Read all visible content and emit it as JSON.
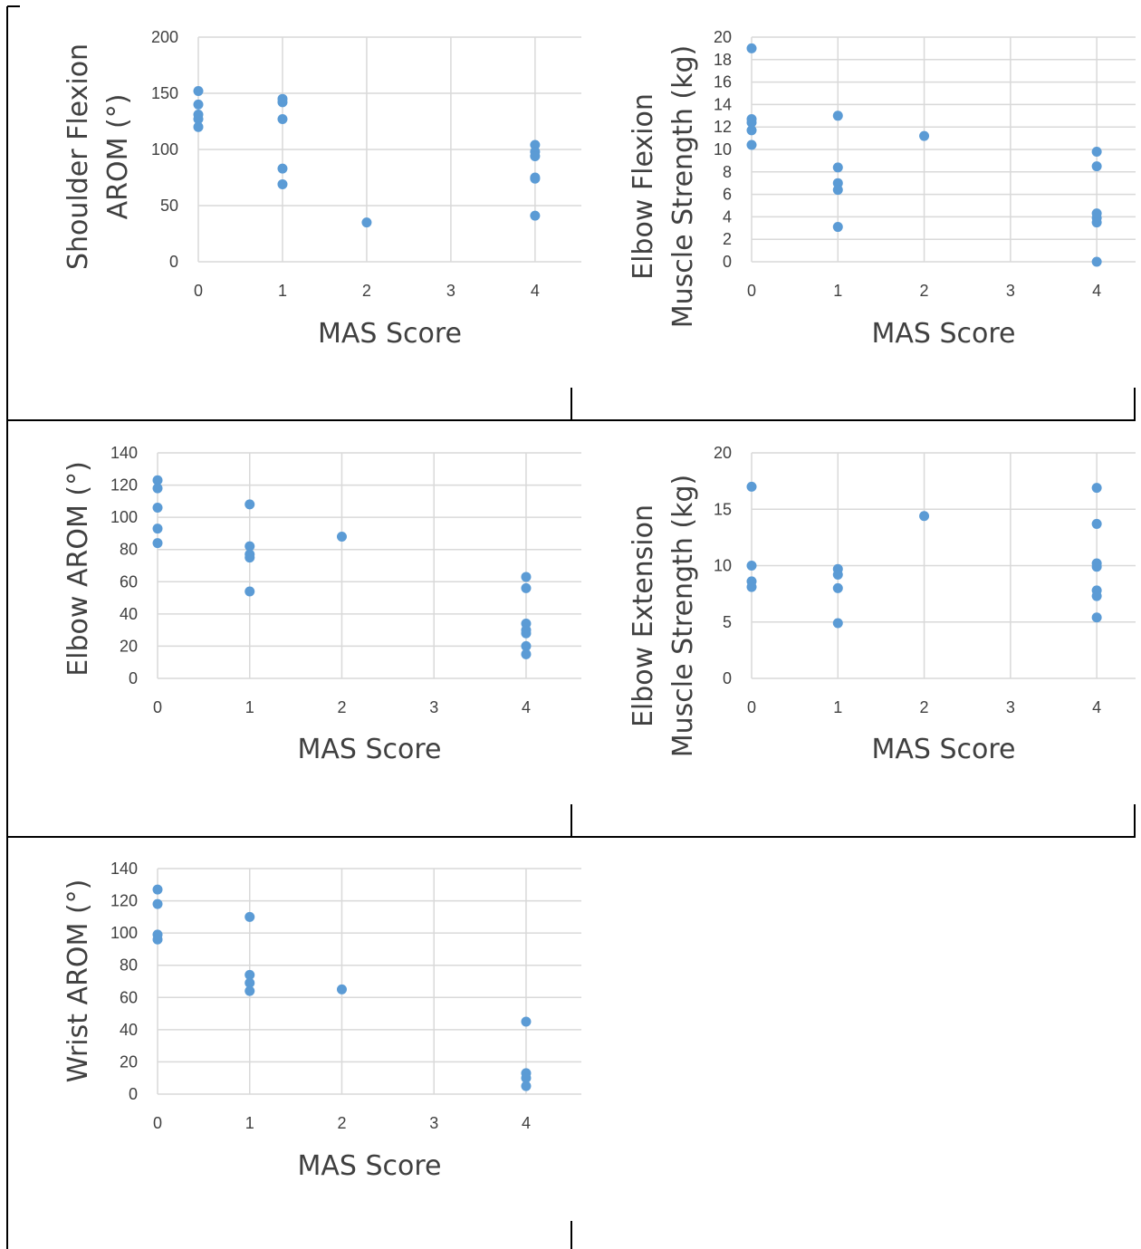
{
  "colors": {
    "marker": "#5b9bd5",
    "grid": "#d9d9d9",
    "text": "#404040",
    "border": "#000000"
  },
  "chart_data": [
    {
      "id": "c1",
      "type": "scatter",
      "xlabel": "MAS Score",
      "ylabel": [
        "Shoulder Flexion",
        "AROM (°)"
      ],
      "xlim": [
        0,
        4.55
      ],
      "ylim": [
        0,
        200
      ],
      "xticks": [
        0,
        1,
        2,
        3,
        4
      ],
      "yticks": [
        0,
        50,
        100,
        150,
        200
      ],
      "grid": "on",
      "points": [
        [
          0,
          152
        ],
        [
          0,
          140
        ],
        [
          0,
          131
        ],
        [
          0,
          127
        ],
        [
          0,
          120
        ],
        [
          1,
          145
        ],
        [
          1,
          142
        ],
        [
          1,
          127
        ],
        [
          1,
          83
        ],
        [
          1,
          69
        ],
        [
          2,
          35
        ],
        [
          4,
          104
        ],
        [
          4,
          98
        ],
        [
          4,
          94
        ],
        [
          4,
          75
        ],
        [
          4,
          74
        ],
        [
          4,
          41
        ]
      ]
    },
    {
      "id": "c2",
      "type": "scatter",
      "xlabel": "MAS Score",
      "ylabel": [
        "Elbow Flexion",
        "Muscle Strength  (kg)"
      ],
      "xlim": [
        0,
        4.45
      ],
      "ylim": [
        0,
        20
      ],
      "xticks": [
        0,
        1,
        2,
        3,
        4
      ],
      "yticks": [
        0,
        2,
        4,
        6,
        8,
        10,
        12,
        14,
        16,
        18,
        20
      ],
      "grid": "on",
      "points": [
        [
          0,
          19
        ],
        [
          0,
          12.7
        ],
        [
          0,
          12.4
        ],
        [
          0,
          11.7
        ],
        [
          0,
          10.4
        ],
        [
          1,
          13
        ],
        [
          1,
          8.4
        ],
        [
          1,
          7
        ],
        [
          1,
          6.4
        ],
        [
          1,
          3.1
        ],
        [
          2,
          11.2
        ],
        [
          4,
          9.8
        ],
        [
          4,
          8.5
        ],
        [
          4,
          4.3
        ],
        [
          4,
          3.9
        ],
        [
          4,
          3.5
        ],
        [
          4,
          0
        ]
      ]
    },
    {
      "id": "c3",
      "type": "scatter",
      "xlabel": "MAS Score",
      "ylabel": [
        "Elbow AROM (°)"
      ],
      "xlim": [
        0,
        4.6
      ],
      "ylim": [
        0,
        140
      ],
      "xticks": [
        0,
        1,
        2,
        3,
        4
      ],
      "yticks": [
        0,
        20,
        40,
        60,
        80,
        100,
        120,
        140
      ],
      "grid": "on",
      "points": [
        [
          0,
          123
        ],
        [
          0,
          118
        ],
        [
          0,
          106
        ],
        [
          0,
          93
        ],
        [
          0,
          84
        ],
        [
          1,
          108
        ],
        [
          1,
          82
        ],
        [
          1,
          77
        ],
        [
          1,
          75
        ],
        [
          1,
          54
        ],
        [
          2,
          88
        ],
        [
          4,
          63
        ],
        [
          4,
          56
        ],
        [
          4,
          34
        ],
        [
          4,
          30
        ],
        [
          4,
          28
        ],
        [
          4,
          20
        ],
        [
          4,
          15
        ]
      ]
    },
    {
      "id": "c4",
      "type": "scatter",
      "xlabel": "MAS Score",
      "ylabel": [
        "Elbow Extension",
        "Muscle Strength (kg)"
      ],
      "xlim": [
        0,
        4.45
      ],
      "ylim": [
        0,
        20
      ],
      "xticks": [
        0,
        1,
        2,
        3,
        4
      ],
      "yticks": [
        0,
        5,
        10,
        15,
        20
      ],
      "grid": "on",
      "points": [
        [
          0,
          17
        ],
        [
          0,
          10
        ],
        [
          0,
          8.6
        ],
        [
          0,
          8.1
        ],
        [
          1,
          9.7
        ],
        [
          1,
          9.2
        ],
        [
          1,
          8
        ],
        [
          1,
          4.9
        ],
        [
          2,
          14.4
        ],
        [
          4,
          16.9
        ],
        [
          4,
          13.7
        ],
        [
          4,
          10.2
        ],
        [
          4,
          9.9
        ],
        [
          4,
          7.8
        ],
        [
          4,
          7.3
        ],
        [
          4,
          5.4
        ]
      ]
    },
    {
      "id": "c5",
      "type": "scatter",
      "xlabel": "MAS Score",
      "ylabel": [
        "Wrist AROM (°)"
      ],
      "xlim": [
        0,
        4.6
      ],
      "ylim": [
        0,
        140
      ],
      "xticks": [
        0,
        1,
        2,
        3,
        4
      ],
      "yticks": [
        0,
        20,
        40,
        60,
        80,
        100,
        120,
        140
      ],
      "grid": "on",
      "points": [
        [
          0,
          127
        ],
        [
          0,
          118
        ],
        [
          0,
          99
        ],
        [
          0,
          96
        ],
        [
          1,
          110
        ],
        [
          1,
          74
        ],
        [
          1,
          69
        ],
        [
          1,
          64
        ],
        [
          2,
          65
        ],
        [
          4,
          45
        ],
        [
          4,
          13
        ],
        [
          4,
          10
        ],
        [
          4,
          5
        ]
      ]
    }
  ]
}
